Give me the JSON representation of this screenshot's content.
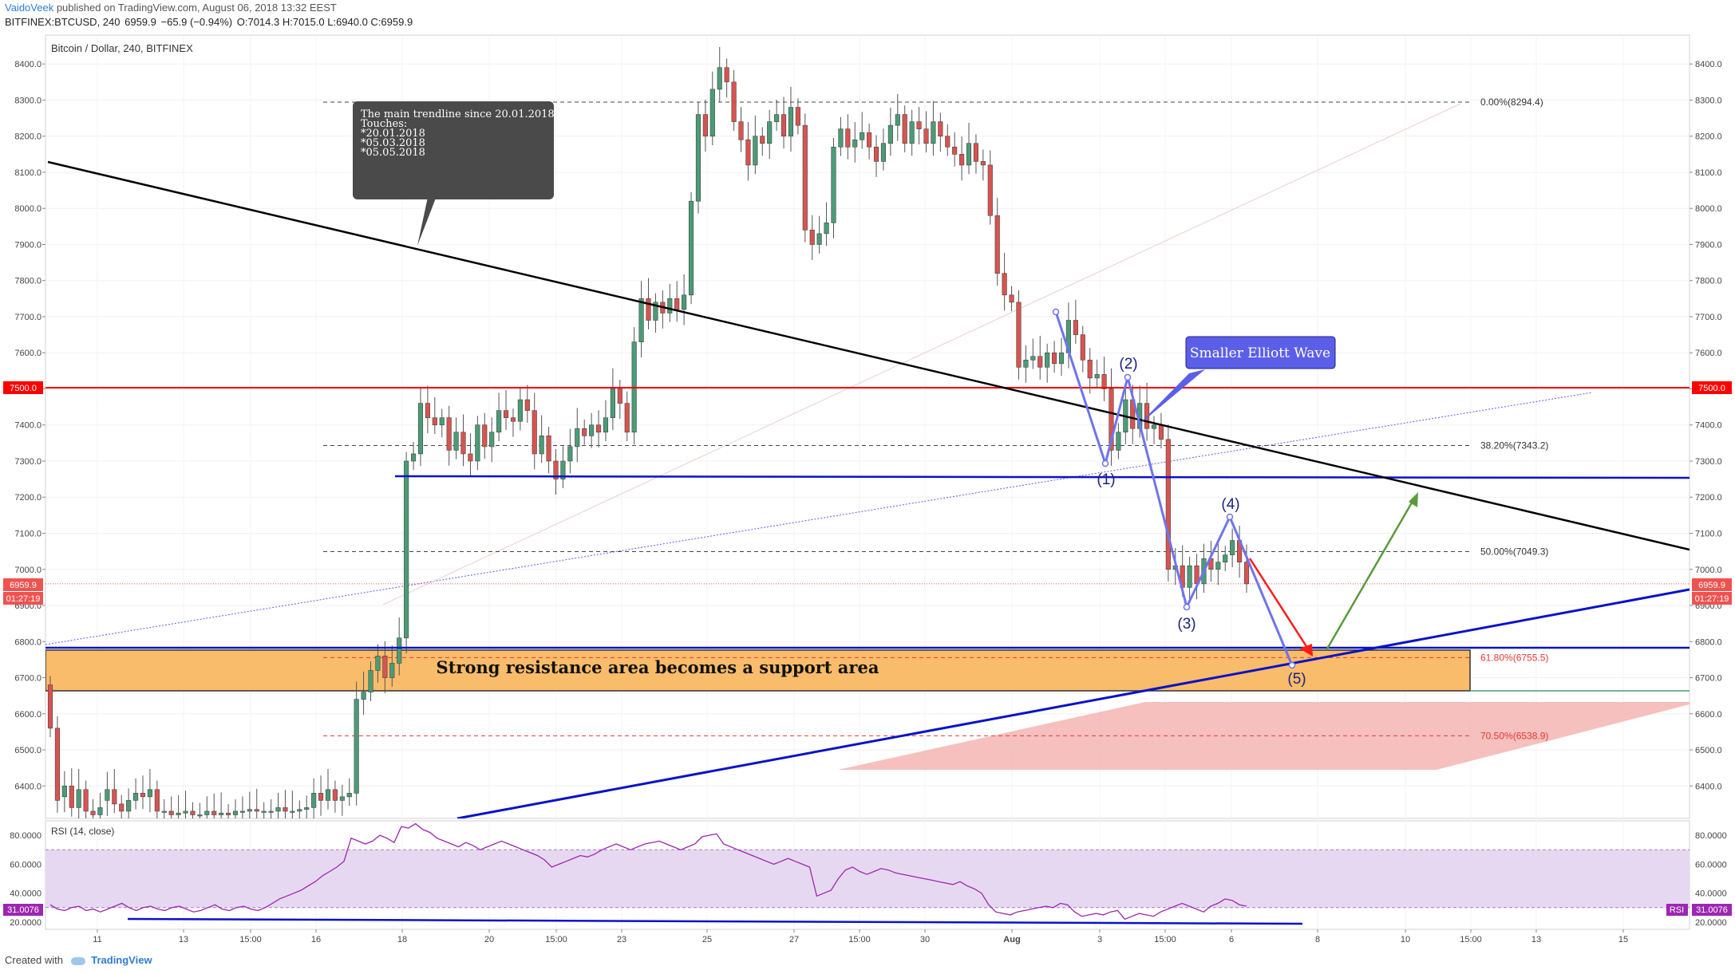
{
  "header": {
    "author": "VaidoVeek",
    "published": "published on TradingView.com, August 06, 2018 13:32 EEST",
    "symbol": "BITFINEX:BTCUSD, 240",
    "last": "6959.9",
    "change": "−65.9 (−0.94%)",
    "ohlc": "O:7014.3 H:7015.0 L:6940.0 C:6959.9"
  },
  "footer": {
    "created_with": "Created with",
    "brand": "TradingView"
  },
  "chart_data": {
    "type": "candlestick",
    "title": "Bitcoin / Dollar, 240, BITFINEX",
    "price_axis": {
      "ylim": [
        6310,
        8480
      ],
      "ticks": [
        6400,
        6500,
        6600,
        6700,
        6800,
        6900,
        7000,
        7100,
        7200,
        7300,
        7400,
        7500,
        7600,
        7700,
        7800,
        7900,
        8000,
        8100,
        8200,
        8300,
        8400
      ]
    },
    "time_axis": {
      "labels": [
        "11",
        "13",
        "15:00",
        "16",
        "18",
        "20",
        "15:00",
        "23",
        "25",
        "27",
        "15:00",
        "30",
        "Aug",
        "3",
        "15:00",
        "6",
        "8",
        "10",
        "15:00",
        "13",
        "15"
      ]
    },
    "price_labels": [
      {
        "text": "7500.0",
        "color": "#ff0000"
      },
      {
        "text": "6959.9",
        "color": "#ef5350"
      },
      {
        "text": "01:27:19",
        "color": "#ef5350"
      }
    ],
    "fibonacci": [
      {
        "label": "0.00%(8294.4)",
        "price": 8294.4
      },
      {
        "label": "38.20%(7343.2)",
        "price": 7343.2
      },
      {
        "label": "50.00%(7049.3)",
        "price": 7049.3
      },
      {
        "label": "61.80%(6755.5)",
        "price": 6755.5
      },
      {
        "label": "70.50%(6538.9)",
        "price": 6538.9
      }
    ],
    "horizontal_lines": [
      {
        "price": 7500,
        "color": "#ff0000"
      },
      {
        "price": 7255,
        "color": "#0a12c8"
      },
      {
        "price": 6785,
        "color": "#0a12c8"
      }
    ],
    "candles": [
      {
        "o": 6680,
        "c": 6560
      },
      {
        "o": 6560,
        "c": 6360
      },
      {
        "o": 6370,
        "c": 6400
      },
      {
        "o": 6400,
        "c": 6340
      },
      {
        "o": 6340,
        "c": 6390
      },
      {
        "o": 6390,
        "c": 6330
      },
      {
        "o": 6330,
        "c": 6320
      },
      {
        "o": 6320,
        "c": 6340
      },
      {
        "o": 6360,
        "c": 6390
      },
      {
        "o": 6390,
        "c": 6350
      },
      {
        "o": 6350,
        "c": 6330
      },
      {
        "o": 6330,
        "c": 6360
      },
      {
        "o": 6360,
        "c": 6380
      },
      {
        "o": 6380,
        "c": 6370
      },
      {
        "o": 6370,
        "c": 6390
      },
      {
        "o": 6390,
        "c": 6330
      },
      {
        "o": 6330,
        "c": 6330
      },
      {
        "o": 6330,
        "c": 6320
      },
      {
        "o": 6320,
        "c": 6325
      },
      {
        "o": 6325,
        "c": 6330
      },
      {
        "o": 6330,
        "c": 6320
      },
      {
        "o": 6320,
        "c": 6320
      },
      {
        "o": 6320,
        "c": 6330
      },
      {
        "o": 6330,
        "c": 6320
      },
      {
        "o": 6320,
        "c": 6325
      },
      {
        "o": 6325,
        "c": 6320
      },
      {
        "o": 6320,
        "c": 6330
      },
      {
        "o": 6330,
        "c": 6330
      },
      {
        "o": 6330,
        "c": 6335
      },
      {
        "o": 6335,
        "c": 6330
      },
      {
        "o": 6330,
        "c": 6330
      },
      {
        "o": 6330,
        "c": 6330
      },
      {
        "o": 6330,
        "c": 6340
      },
      {
        "o": 6340,
        "c": 6330
      },
      {
        "o": 6330,
        "c": 6330
      },
      {
        "o": 6330,
        "c": 6335
      },
      {
        "o": 6335,
        "c": 6340
      },
      {
        "o": 6340,
        "c": 6380
      },
      {
        "o": 6380,
        "c": 6360
      },
      {
        "o": 6360,
        "c": 6390
      },
      {
        "o": 6390,
        "c": 6360
      },
      {
        "o": 6360,
        "c": 6370
      },
      {
        "o": 6370,
        "c": 6380
      },
      {
        "o": 6380,
        "c": 6640
      },
      {
        "o": 6640,
        "c": 6660
      },
      {
        "o": 6660,
        "c": 6720
      },
      {
        "o": 6720,
        "c": 6760
      },
      {
        "o": 6760,
        "c": 6700
      },
      {
        "o": 6700,
        "c": 6740
      },
      {
        "o": 6740,
        "c": 6810
      },
      {
        "o": 6810,
        "c": 7300
      },
      {
        "o": 7300,
        "c": 7320
      },
      {
        "o": 7320,
        "c": 7460
      },
      {
        "o": 7460,
        "c": 7420
      },
      {
        "o": 7420,
        "c": 7400
      },
      {
        "o": 7400,
        "c": 7420
      },
      {
        "o": 7420,
        "c": 7330
      },
      {
        "o": 7330,
        "c": 7380
      },
      {
        "o": 7380,
        "c": 7320
      },
      {
        "o": 7320,
        "c": 7300
      },
      {
        "o": 7300,
        "c": 7400
      },
      {
        "o": 7400,
        "c": 7340
      },
      {
        "o": 7340,
        "c": 7380
      },
      {
        "o": 7380,
        "c": 7440
      },
      {
        "o": 7440,
        "c": 7420
      },
      {
        "o": 7420,
        "c": 7410
      },
      {
        "o": 7410,
        "c": 7470
      },
      {
        "o": 7470,
        "c": 7440
      },
      {
        "o": 7440,
        "c": 7320
      },
      {
        "o": 7320,
        "c": 7370
      },
      {
        "o": 7370,
        "c": 7300
      },
      {
        "o": 7300,
        "c": 7250
      },
      {
        "o": 7250,
        "c": 7300
      },
      {
        "o": 7300,
        "c": 7340
      },
      {
        "o": 7340,
        "c": 7390
      },
      {
        "o": 7390,
        "c": 7370
      },
      {
        "o": 7370,
        "c": 7400
      },
      {
        "o": 7400,
        "c": 7380
      },
      {
        "o": 7380,
        "c": 7420
      },
      {
        "o": 7420,
        "c": 7500
      },
      {
        "o": 7500,
        "c": 7460
      },
      {
        "o": 7460,
        "c": 7380
      },
      {
        "o": 7380,
        "c": 7630
      },
      {
        "o": 7630,
        "c": 7750
      },
      {
        "o": 7750,
        "c": 7690
      },
      {
        "o": 7690,
        "c": 7740
      },
      {
        "o": 7740,
        "c": 7710
      },
      {
        "o": 7710,
        "c": 7750
      },
      {
        "o": 7750,
        "c": 7720
      },
      {
        "o": 7720,
        "c": 7760
      },
      {
        "o": 7760,
        "c": 8020
      },
      {
        "o": 8020,
        "c": 8260
      },
      {
        "o": 8260,
        "c": 8200
      },
      {
        "o": 8200,
        "c": 8330
      },
      {
        "o": 8330,
        "c": 8390
      },
      {
        "o": 8390,
        "c": 8350
      },
      {
        "o": 8350,
        "c": 8240
      },
      {
        "o": 8240,
        "c": 8190
      },
      {
        "o": 8190,
        "c": 8120
      },
      {
        "o": 8120,
        "c": 8200
      },
      {
        "o": 8200,
        "c": 8180
      },
      {
        "o": 8180,
        "c": 8240
      },
      {
        "o": 8240,
        "c": 8260
      },
      {
        "o": 8260,
        "c": 8200
      },
      {
        "o": 8200,
        "c": 8280
      },
      {
        "o": 8280,
        "c": 8230
      },
      {
        "o": 8230,
        "c": 7940
      },
      {
        "o": 7940,
        "c": 7900
      },
      {
        "o": 7900,
        "c": 7930
      },
      {
        "o": 7930,
        "c": 7960
      },
      {
        "o": 7960,
        "c": 8170
      },
      {
        "o": 8170,
        "c": 8220
      },
      {
        "o": 8220,
        "c": 8170
      },
      {
        "o": 8170,
        "c": 8190
      },
      {
        "o": 8190,
        "c": 8210
      },
      {
        "o": 8210,
        "c": 8170
      },
      {
        "o": 8170,
        "c": 8130
      },
      {
        "o": 8130,
        "c": 8180
      },
      {
        "o": 8180,
        "c": 8230
      },
      {
        "o": 8230,
        "c": 8260
      },
      {
        "o": 8260,
        "c": 8180
      },
      {
        "o": 8180,
        "c": 8240
      },
      {
        "o": 8240,
        "c": 8220
      },
      {
        "o": 8220,
        "c": 8180
      },
      {
        "o": 8180,
        "c": 8240
      },
      {
        "o": 8240,
        "c": 8200
      },
      {
        "o": 8200,
        "c": 8170
      },
      {
        "o": 8170,
        "c": 8150
      },
      {
        "o": 8150,
        "c": 8120
      },
      {
        "o": 8120,
        "c": 8180
      },
      {
        "o": 8180,
        "c": 8130
      },
      {
        "o": 8130,
        "c": 8120
      },
      {
        "o": 8120,
        "c": 7980
      },
      {
        "o": 7980,
        "c": 7820
      },
      {
        "o": 7820,
        "c": 7760
      },
      {
        "o": 7760,
        "c": 7740
      },
      {
        "o": 7740,
        "c": 7560
      },
      {
        "o": 7560,
        "c": 7580
      },
      {
        "o": 7580,
        "c": 7590
      },
      {
        "o": 7590,
        "c": 7560
      },
      {
        "o": 7560,
        "c": 7600
      },
      {
        "o": 7600,
        "c": 7570
      },
      {
        "o": 7570,
        "c": 7600
      },
      {
        "o": 7600,
        "c": 7690
      },
      {
        "o": 7690,
        "c": 7650
      },
      {
        "o": 7650,
        "c": 7580
      },
      {
        "o": 7580,
        "c": 7530
      },
      {
        "o": 7530,
        "c": 7540
      },
      {
        "o": 7540,
        "c": 7500
      },
      {
        "o": 7500,
        "c": 7330
      },
      {
        "o": 7330,
        "c": 7380
      },
      {
        "o": 7380,
        "c": 7470
      },
      {
        "o": 7470,
        "c": 7390
      },
      {
        "o": 7390,
        "c": 7460
      },
      {
        "o": 7460,
        "c": 7390
      },
      {
        "o": 7390,
        "c": 7400
      },
      {
        "o": 7400,
        "c": 7360
      },
      {
        "o": 7360,
        "c": 7000
      },
      {
        "o": 7000,
        "c": 7010
      },
      {
        "o": 7010,
        "c": 6950
      },
      {
        "o": 6950,
        "c": 7010
      },
      {
        "o": 7010,
        "c": 6960
      },
      {
        "o": 6960,
        "c": 7030
      },
      {
        "o": 7030,
        "c": 7000
      },
      {
        "o": 7000,
        "c": 7020
      },
      {
        "o": 7020,
        "c": 7040
      },
      {
        "o": 7040,
        "c": 7080
      },
      {
        "o": 7080,
        "c": 7020
      },
      {
        "o": 7020,
        "c": 6960
      }
    ],
    "rsi": {
      "label": "RSI (14, close)",
      "ylim": [
        15,
        90
      ],
      "ticks": [
        20,
        40,
        60,
        80
      ],
      "bands": [
        30,
        70
      ],
      "last": "31.0076",
      "tag": "RSI",
      "values": [
        32,
        29,
        28,
        30,
        31,
        28,
        29,
        27,
        29,
        31,
        33,
        30,
        28,
        30,
        31,
        29,
        28,
        30,
        31,
        29,
        27,
        28,
        30,
        32,
        29,
        28,
        30,
        31,
        29,
        28,
        30,
        33,
        36,
        38,
        40,
        42,
        45,
        48,
        52,
        55,
        58,
        62,
        78,
        76,
        74,
        76,
        80,
        78,
        75,
        86,
        85,
        88,
        84,
        82,
        78,
        76,
        74,
        72,
        75,
        73,
        70,
        72,
        74,
        76,
        74,
        72,
        70,
        68,
        66,
        63,
        58,
        60,
        62,
        64,
        66,
        65,
        67,
        70,
        72,
        74,
        72,
        70,
        72,
        74,
        75,
        76,
        74,
        72,
        70,
        72,
        74,
        79,
        80,
        81,
        74,
        72,
        70,
        68,
        66,
        64,
        62,
        60,
        62,
        64,
        62,
        60,
        58,
        38,
        40,
        42,
        50,
        56,
        58,
        55,
        53,
        55,
        57,
        56,
        54,
        53,
        52,
        51,
        50,
        49,
        48,
        47,
        46,
        48,
        45,
        43,
        40,
        32,
        27,
        26,
        25,
        27,
        28,
        29,
        30,
        31,
        30,
        33,
        32,
        27,
        24,
        25,
        26,
        25,
        27,
        28,
        22,
        24,
        26,
        25,
        24,
        27,
        29,
        31,
        33,
        31,
        29,
        27,
        31,
        33,
        36,
        35,
        32,
        31
      ]
    }
  },
  "annotations": {
    "trendline_note": [
      "The main trendline since 20.01.2018",
      "Touches:",
      "*20.01.2018",
      "*05.03.2018",
      "*05.05.2018"
    ],
    "elliott_label": "Smaller Elliott Wave",
    "wave_labels": [
      "(1)",
      "(2)",
      "(3)",
      "(4)",
      "(5)"
    ],
    "zone_label": "Strong resistance area becomes a support area"
  },
  "colors": {
    "up": "#4a9c76",
    "down": "#d9534f",
    "resistance": "#ff0000",
    "support": "#0a12c8",
    "wave": "#6f74ec",
    "zone": "#f9bc6a",
    "target_zone": "#f4b9b6",
    "rsi_line": "#9c27b0",
    "rsi_band": "#e7d8f1"
  }
}
